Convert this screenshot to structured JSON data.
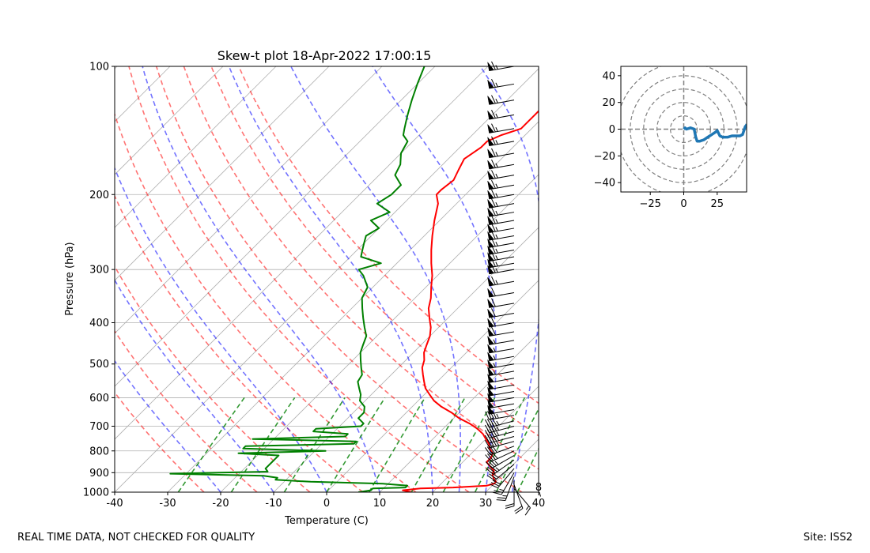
{
  "footer": {
    "disclaimer": "REAL TIME DATA, NOT CHECKED FOR QUALITY",
    "site": "Site: ISS2"
  },
  "colors": {
    "temperature": "#ff0000",
    "dewpoint": "#008000",
    "dry_adiabat": "#ff0000",
    "moist_adiabat": "#0000ff",
    "mixing_ratio": "#008000",
    "hodograph": "#1f77b4"
  },
  "chart_data": [
    {
      "type": "line",
      "title": "Skew-t plot 18-Apr-2022 17:00:15",
      "xlabel": "Temperature (C)",
      "ylabel": "Pressure (hPa)",
      "xlim": [
        -40,
        40
      ],
      "ylim": [
        1000,
        100
      ],
      "y_scale": "log",
      "x_ticks": [
        "-40",
        "-30",
        "-20",
        "-10",
        "0",
        "10",
        "20",
        "30",
        "40"
      ],
      "y_ticks": [
        "100",
        "200",
        "300",
        "400",
        "500",
        "600",
        "700",
        "800",
        "900",
        "1000"
      ],
      "grid": true,
      "series": [
        {
          "key": "temperature",
          "pressure": [
            1000,
            990,
            980,
            975,
            965,
            955,
            945,
            930,
            910,
            890,
            870,
            850,
            830,
            810,
            790,
            770,
            750,
            730,
            710,
            690,
            670,
            650,
            630,
            610,
            590,
            570,
            550,
            530,
            510,
            490,
            470,
            450,
            430,
            410,
            390,
            370,
            350,
            330,
            310,
            290,
            270,
            250,
            230,
            210,
            200,
            195,
            185,
            175,
            165,
            155,
            150,
            145,
            140,
            135,
            130,
            125,
            120,
            115,
            110,
            105,
            100
          ],
          "temperature": [
            16,
            14,
            17,
            23,
            29,
            30,
            30,
            29,
            28,
            27.5,
            26,
            24.5,
            24.5,
            24,
            22.5,
            21.5,
            20,
            18.5,
            16.5,
            14,
            11,
            8.5,
            5.5,
            3,
            1,
            -1,
            -2.5,
            -4,
            -5.5,
            -6.5,
            -8,
            -9,
            -10,
            -11.5,
            -13.5,
            -15.5,
            -17,
            -19,
            -21,
            -23.5,
            -26,
            -28.5,
            -31,
            -33.5,
            -35.5,
            -35.5,
            -35,
            -36,
            -37,
            -36,
            -36,
            -34.5,
            -32,
            -32,
            -32,
            -32,
            -33,
            -32.5,
            -32,
            -32.5,
            -31.5
          ]
        },
        {
          "key": "dewpoint",
          "pressure": [
            1000,
            990,
            980,
            975,
            965,
            955,
            945,
            935,
            925,
            915,
            905,
            895,
            880,
            865,
            850,
            835,
            820,
            810,
            800,
            790,
            780,
            770,
            760,
            750,
            740,
            730,
            720,
            710,
            700,
            690,
            670,
            650,
            630,
            610,
            590,
            570,
            550,
            530,
            510,
            490,
            470,
            450,
            430,
            410,
            390,
            370,
            350,
            330,
            310,
            300,
            290,
            280,
            270,
            260,
            250,
            240,
            230,
            220,
            210,
            200,
            190,
            180,
            170,
            160,
            150,
            145,
            140,
            135,
            130,
            120,
            110,
            100
          ],
          "dewpoint": [
            6,
            8,
            8,
            14,
            14,
            9,
            -5,
            -12,
            -12,
            -15,
            -33,
            -15,
            -16,
            -16,
            -16,
            -16,
            -16,
            -24,
            -8,
            -24,
            -24,
            -4,
            -4,
            -24,
            -7,
            -7,
            -14,
            -14,
            -6,
            -6,
            -8,
            -8,
            -9,
            -11,
            -12,
            -13.5,
            -15,
            -15.5,
            -17,
            -18.5,
            -20,
            -21,
            -22,
            -24,
            -26,
            -28,
            -30,
            -31,
            -34,
            -36,
            -33,
            -38,
            -39,
            -40,
            -41,
            -40,
            -43,
            -41,
            -45,
            -44,
            -44,
            -47,
            -48,
            -50,
            -51,
            -53,
            -54,
            -55,
            -56,
            -58,
            -60,
            -62
          ]
        }
      ],
      "dry_adiabats_theta_K": [
        250,
        260,
        270,
        280,
        290,
        300,
        310,
        320,
        330,
        340
      ],
      "moist_adiabats_start_C": [
        -20,
        -10,
        0,
        10,
        20,
        25,
        30,
        35,
        40
      ],
      "mixing_ratio_start_C": [
        -28,
        -18,
        -8,
        0,
        8,
        16,
        22,
        28,
        32,
        36
      ],
      "wind_barbs": {
        "pressure": [
          1000,
          980,
          960,
          940,
          920,
          900,
          880,
          860,
          840,
          820,
          800,
          780,
          760,
          740,
          720,
          700,
          680,
          660,
          640,
          620,
          600,
          580,
          560,
          540,
          520,
          500,
          480,
          460,
          440,
          420,
          400,
          380,
          360,
          340,
          320,
          300,
          290,
          280,
          270,
          260,
          250,
          240,
          230,
          220,
          210,
          200,
          190,
          180,
          170,
          160,
          150,
          140,
          130,
          120,
          110,
          100
        ],
        "speed_kt": [
          5,
          15,
          20,
          20,
          25,
          25,
          30,
          30,
          35,
          35,
          40,
          40,
          45,
          45,
          45,
          45,
          45,
          45,
          50,
          50,
          50,
          50,
          50,
          50,
          55,
          55,
          55,
          55,
          55,
          60,
          60,
          60,
          60,
          60,
          65,
          65,
          65,
          65,
          65,
          65,
          65,
          65,
          65,
          65,
          65,
          65,
          65,
          65,
          65,
          65,
          65,
          65,
          65,
          65,
          65,
          65
        ],
        "from_deg": [
          90,
          140,
          160,
          180,
          200,
          210,
          220,
          230,
          235,
          240,
          245,
          250,
          255,
          255,
          255,
          255,
          255,
          260,
          260,
          260,
          260,
          260,
          260,
          260,
          260,
          260,
          260,
          260,
          260,
          260,
          260,
          260,
          260,
          260,
          260,
          260,
          260,
          260,
          260,
          260,
          260,
          260,
          260,
          260,
          260,
          260,
          260,
          260,
          260,
          260,
          260,
          260,
          260,
          260,
          260,
          260
        ]
      },
      "wind_barb_label": "8"
    },
    {
      "type": "line",
      "title": "",
      "xlabel": "",
      "ylabel": "",
      "xlim": [
        -47,
        47
      ],
      "ylim": [
        -47,
        47
      ],
      "x_ticks": [
        "−25",
        "0",
        "25"
      ],
      "y_ticks": [
        "−40",
        "−20",
        "0",
        "20",
        "40"
      ],
      "range_rings": [
        10,
        20,
        30,
        40,
        50
      ],
      "series": [
        {
          "key": "hodograph",
          "u": [
            0,
            1,
            2,
            5,
            8,
            8,
            9,
            10,
            12,
            15,
            18,
            21,
            24,
            25,
            26,
            27,
            29,
            33,
            36,
            39,
            42,
            44,
            45,
            46,
            47,
            47
          ],
          "v": [
            0,
            1,
            0,
            1,
            0,
            -1,
            -6,
            -9,
            -9,
            -8,
            -6,
            -4,
            -2,
            -1,
            -3,
            -5,
            -6,
            -6,
            -5,
            -5,
            -5,
            -4,
            -1,
            2,
            3,
            4
          ]
        }
      ]
    }
  ]
}
